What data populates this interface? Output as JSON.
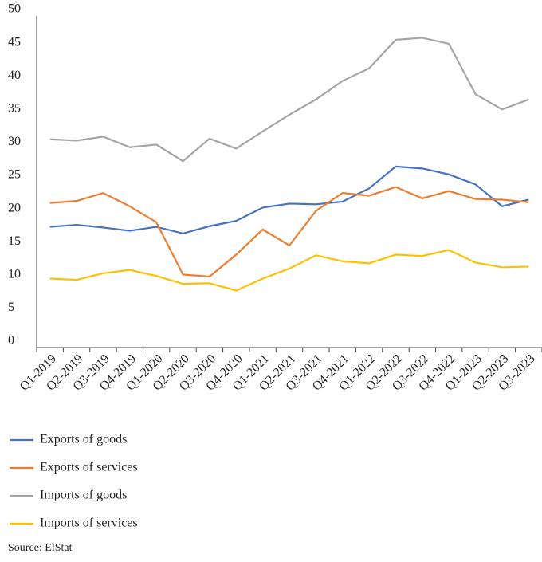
{
  "chart_data": {
    "type": "line",
    "categories": [
      "Q1-2019",
      "Q2-2019",
      "Q3-2019",
      "Q4-2019",
      "Q1-2020",
      "Q2-2020",
      "Q3-2020",
      "Q4-2020",
      "Q1-2021",
      "Q2-2021",
      "Q3-2021",
      "Q4-2021",
      "Q1-2022",
      "Q2-2022",
      "Q3-2022",
      "Q4-2022",
      "Q1-2023",
      "Q2-2023",
      "Q3-2023"
    ],
    "series": [
      {
        "name": "Exports of goods",
        "color": "#4472c4",
        "values": [
          18.2,
          18.5,
          18.1,
          17.6,
          18.2,
          17.2,
          18.3,
          19.1,
          21.1,
          21.7,
          21.6,
          22.0,
          24.0,
          27.3,
          27.0,
          26.1,
          24.6,
          21.3,
          22.3
        ]
      },
      {
        "name": "Exports of services",
        "color": "#ed7d31",
        "values": [
          21.8,
          22.1,
          23.3,
          21.3,
          18.9,
          11.0,
          10.7,
          14.0,
          17.8,
          15.4,
          20.6,
          23.3,
          22.9,
          24.2,
          22.5,
          23.6,
          22.4,
          22.3,
          21.9
        ]
      },
      {
        "name": "Imports of goods",
        "color": "#a5a5a5",
        "values": [
          31.4,
          31.2,
          31.8,
          30.2,
          30.6,
          28.1,
          31.5,
          30.0,
          32.6,
          35.1,
          37.4,
          40.2,
          42.1,
          46.4,
          46.7,
          45.8,
          38.2,
          35.9,
          37.4
        ]
      },
      {
        "name": "Imports of services",
        "color": "#ffc000",
        "values": [
          10.4,
          10.2,
          11.2,
          11.7,
          10.8,
          9.6,
          9.7,
          8.6,
          10.4,
          11.9,
          13.9,
          13.0,
          12.7,
          14.0,
          13.8,
          14.7,
          12.8,
          12.1,
          12.2
        ]
      }
    ],
    "ylim": [
      0,
      50
    ],
    "yticks": [
      0,
      5,
      10,
      15,
      20,
      25,
      30,
      35,
      40,
      45,
      50
    ],
    "grid": false,
    "legend": "bottom",
    "source": "Source: ElStat"
  }
}
